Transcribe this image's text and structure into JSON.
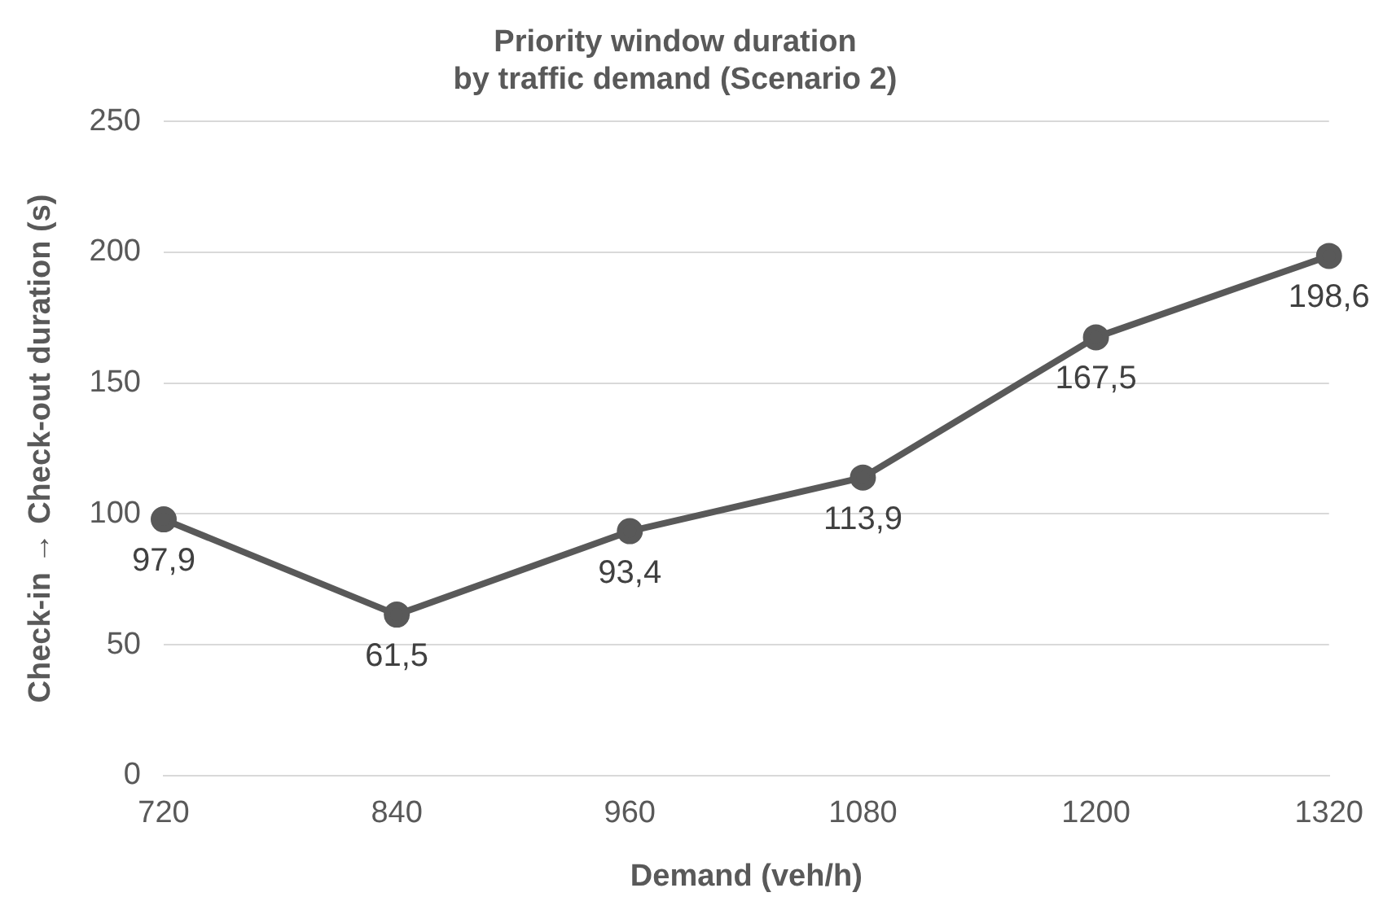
{
  "chart_data": {
    "type": "line",
    "title": "Priority window duration\nby traffic demand (Scenario 2)",
    "xlabel": "Demand (veh/h)",
    "ylabel": "Check-in → Check-out duration (s)",
    "categories": [
      "720",
      "840",
      "960",
      "1080",
      "1200",
      "1320"
    ],
    "series": [
      {
        "color": "#595959",
        "values": [
          97.9,
          61.5,
          93.4,
          113.9,
          167.5,
          198.6
        ],
        "value_labels": [
          "97,9",
          "61,5",
          "93,4",
          "113,9",
          "167,5",
          "198,6"
        ]
      }
    ],
    "ylim": [
      0,
      250
    ],
    "yticks": [
      0,
      50,
      100,
      150,
      200,
      250
    ],
    "grid": "y",
    "legend": false,
    "marker": "circle",
    "line_style": "solid"
  }
}
